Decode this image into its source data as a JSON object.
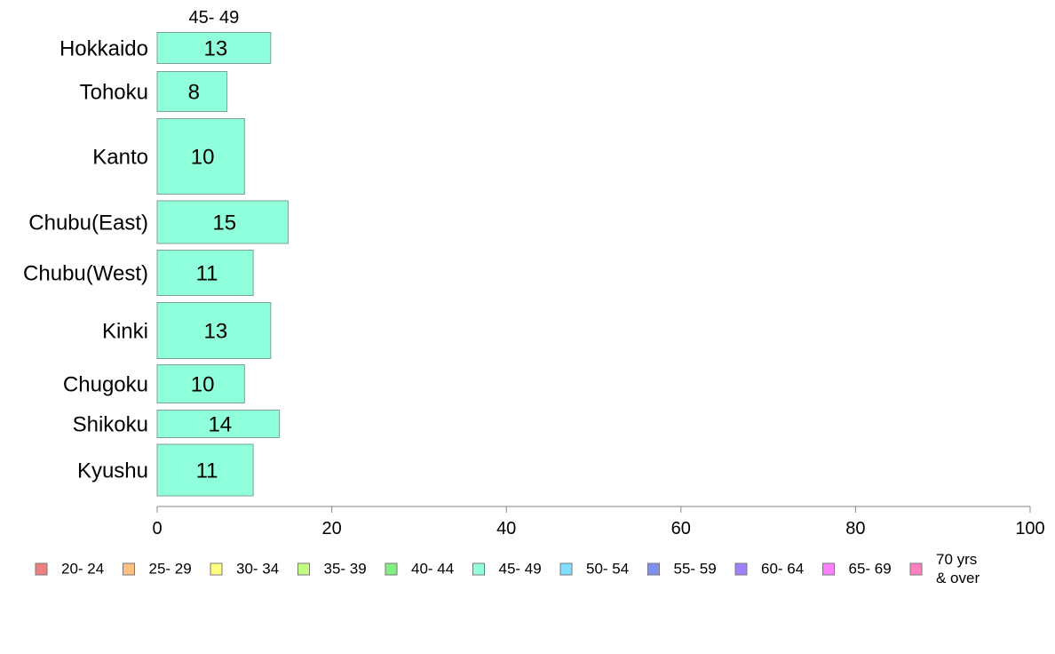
{
  "chart_data": {
    "type": "bar",
    "orientation": "horizontal",
    "stacked": true,
    "column_header": "45- 49",
    "categories": [
      "Hokkaido",
      "Tohoku",
      "Kanto",
      "Chubu(East)",
      "Chubu(West)",
      "Kinki",
      "Chugoku",
      "Shikoku",
      "Kyushu"
    ],
    "series": [
      {
        "name": "45- 49",
        "color": "#8fffdc",
        "values": [
          13,
          8,
          10,
          15,
          11,
          13,
          10,
          14,
          11
        ]
      }
    ],
    "xlim": [
      0,
      100
    ],
    "x_ticks": [
      0,
      20,
      40,
      60,
      80,
      100
    ],
    "grid": false,
    "legend_position": "bottom",
    "legend": [
      {
        "label": "20- 24",
        "color": "#f08080"
      },
      {
        "label": "25- 29",
        "color": "#ffc080"
      },
      {
        "label": "30- 34",
        "color": "#ffff80"
      },
      {
        "label": "35- 39",
        "color": "#c0ff80"
      },
      {
        "label": "40- 44",
        "color": "#80f080"
      },
      {
        "label": "45- 49",
        "color": "#8fffdc"
      },
      {
        "label": "50- 54",
        "color": "#80e0ff"
      },
      {
        "label": "55- 59",
        "color": "#8090f0"
      },
      {
        "label": "60- 64",
        "color": "#a080ff"
      },
      {
        "label": "65- 69",
        "color": "#ff80ff"
      },
      {
        "label": "70 yrs\n& over",
        "color": "#ff80c0"
      }
    ]
  }
}
